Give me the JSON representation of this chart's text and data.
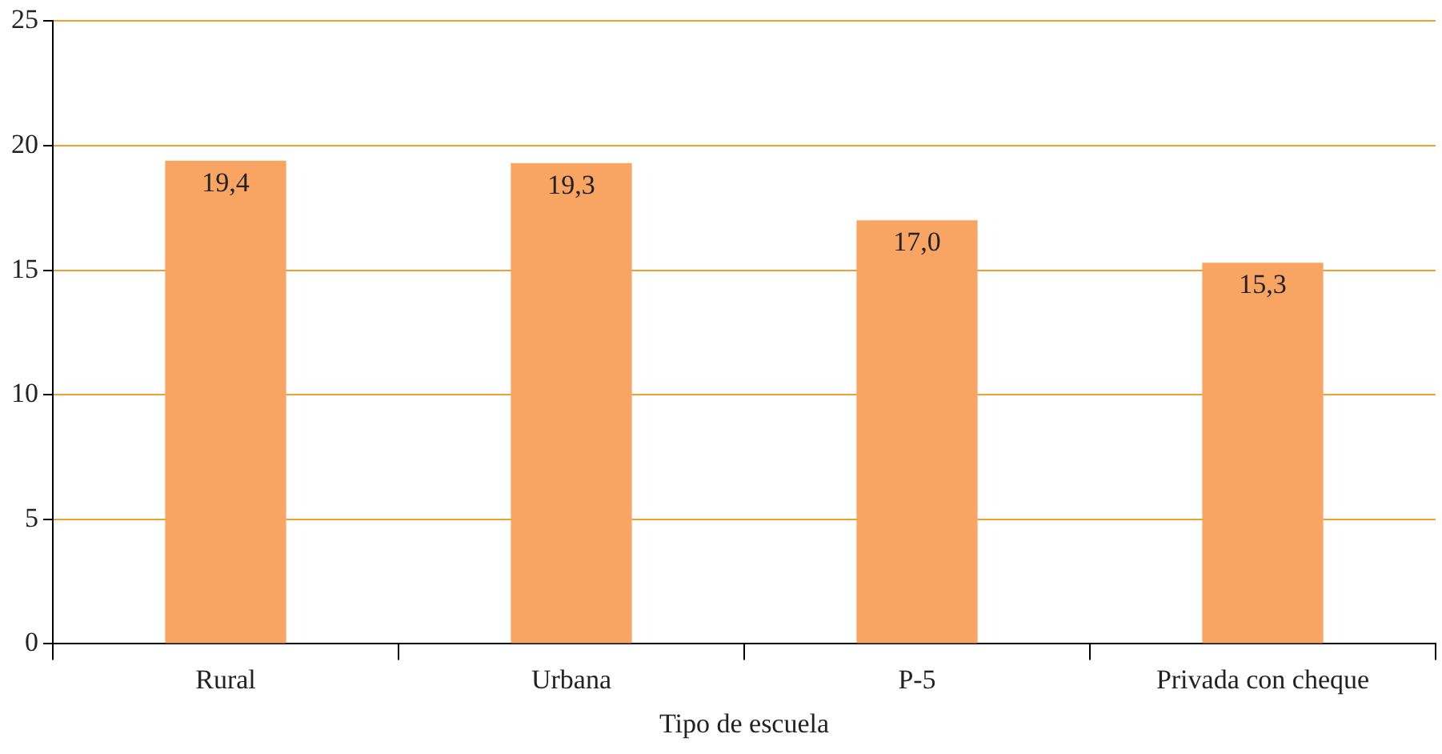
{
  "chart_data": {
    "type": "bar",
    "xlabel": "Tipo de escuela",
    "categories": [
      "Rural",
      "Urbana",
      "P-5",
      "Privada con cheque"
    ],
    "values": [
      19.4,
      19.3,
      17.0,
      15.3
    ],
    "color": "#f8a462",
    "value_labels": [
      "19,4",
      "19,3",
      "17,0",
      "15,3"
    ],
    "ylim": [
      0,
      25
    ],
    "yticks": [
      0,
      5,
      10,
      15,
      20,
      25
    ],
    "grid": "y"
  }
}
